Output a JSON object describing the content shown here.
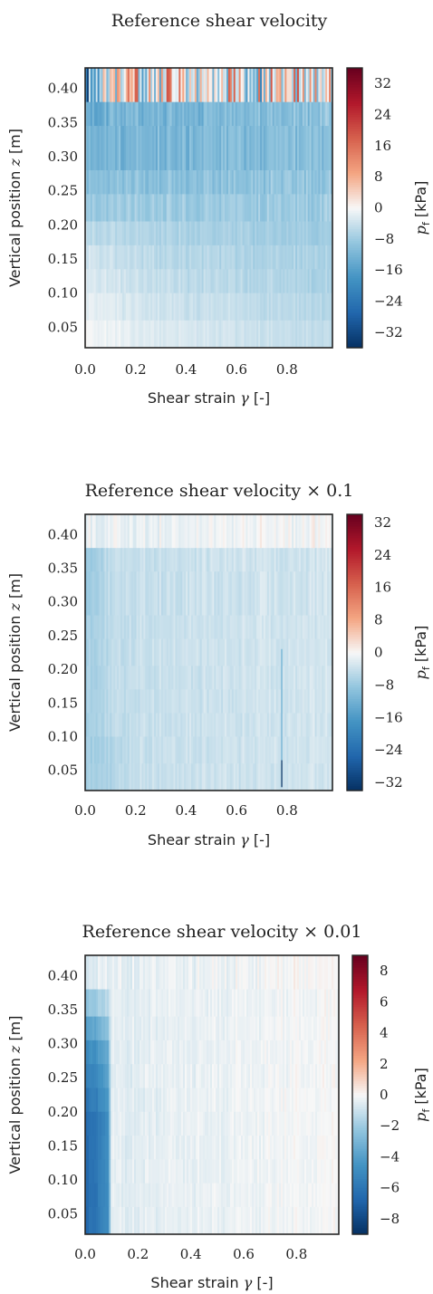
{
  "chart_data": [
    {
      "type": "heatmap",
      "title": "Reference shear velocity",
      "xlabel_text": "Shear strain",
      "xlabel_symbol": "γ",
      "xlabel_unit": "[-]",
      "ylabel_text": "Vertical position",
      "ylabel_symbol": "z",
      "ylabel_unit": "[m]",
      "colorbar_label_symbol": "p",
      "colorbar_label_subscript": "f",
      "colorbar_label_unit": "[kPa]",
      "xlim": [
        0.0,
        0.98
      ],
      "ylim": [
        0.02,
        0.43
      ],
      "xticks": [
        "0.0",
        "0.2",
        "0.4",
        "0.6",
        "0.8"
      ],
      "yticks": [
        "0.05",
        "0.10",
        "0.15",
        "0.20",
        "0.25",
        "0.30",
        "0.35",
        "0.40"
      ],
      "clim": [
        -36,
        36
      ],
      "colorbar_ticks": [
        "−32",
        "−24",
        "−16",
        "−8",
        "0",
        "8",
        "16",
        "24",
        "32"
      ],
      "colormap": "RdBu_r",
      "grid": false,
      "layers": [
        {
          "z": [
            0.38,
            0.43
          ],
          "profile": [
            [
              0.0,
              -36
            ],
            [
              0.02,
              -14
            ],
            [
              0.05,
              -4
            ],
            [
              0.2,
              0
            ],
            [
              0.98,
              0
            ]
          ],
          "noise": 18,
          "stripe": 0.06
        },
        {
          "z": [
            0.345,
            0.38
          ],
          "profile": [
            [
              0.0,
              -14
            ],
            [
              0.1,
              -12
            ],
            [
              0.98,
              -10
            ]
          ],
          "noise": 3,
          "stripe": 0.05
        },
        {
          "z": [
            0.28,
            0.345
          ],
          "profile": [
            [
              0.0,
              -12
            ],
            [
              0.98,
              -10
            ]
          ],
          "noise": 3,
          "stripe": 0.05
        },
        {
          "z": [
            0.245,
            0.28
          ],
          "profile": [
            [
              0.0,
              -10
            ],
            [
              0.98,
              -9
            ]
          ],
          "noise": 2.5,
          "stripe": 0.04
        },
        {
          "z": [
            0.205,
            0.245
          ],
          "profile": [
            [
              0.0,
              -8
            ],
            [
              0.98,
              -8
            ]
          ],
          "noise": 2,
          "stripe": 0.04
        },
        {
          "z": [
            0.17,
            0.205
          ],
          "profile": [
            [
              0.0,
              -5
            ],
            [
              0.2,
              -6
            ],
            [
              0.98,
              -8
            ]
          ],
          "noise": 1.5,
          "stripe": 0.03
        },
        {
          "z": [
            0.135,
            0.17
          ],
          "profile": [
            [
              0.0,
              -3
            ],
            [
              0.2,
              -5
            ],
            [
              0.98,
              -7
            ]
          ],
          "noise": 1.5,
          "stripe": 0.03
        },
        {
          "z": [
            0.1,
            0.135
          ],
          "profile": [
            [
              0.0,
              -2
            ],
            [
              0.2,
              -4
            ],
            [
              0.98,
              -7
            ]
          ],
          "noise": 1.5,
          "stripe": 0.03
        },
        {
          "z": [
            0.06,
            0.1
          ],
          "profile": [
            [
              0.0,
              -1
            ],
            [
              0.2,
              -3
            ],
            [
              0.98,
              -6
            ]
          ],
          "noise": 1.2,
          "stripe": 0.03
        },
        {
          "z": [
            0.02,
            0.06
          ],
          "profile": [
            [
              0.0,
              0
            ],
            [
              0.2,
              -2
            ],
            [
              0.98,
              -5
            ]
          ],
          "noise": 1,
          "stripe": 0.03
        }
      ],
      "features": []
    },
    {
      "type": "heatmap",
      "title": "Reference shear velocity × 0.1",
      "xlabel_text": "Shear strain",
      "xlabel_symbol": "γ",
      "xlabel_unit": "[-]",
      "ylabel_text": "Vertical position",
      "ylabel_symbol": "z",
      "ylabel_unit": "[m]",
      "colorbar_label_symbol": "p",
      "colorbar_label_subscript": "f",
      "colorbar_label_unit": "[kPa]",
      "xlim": [
        0.0,
        0.98
      ],
      "ylim": [
        0.02,
        0.43
      ],
      "xticks": [
        "0.0",
        "0.2",
        "0.4",
        "0.6",
        "0.8"
      ],
      "yticks": [
        "0.05",
        "0.10",
        "0.15",
        "0.20",
        "0.25",
        "0.30",
        "0.35",
        "0.40"
      ],
      "clim": [
        -34,
        34
      ],
      "colorbar_ticks": [
        "−32",
        "−24",
        "−16",
        "−8",
        "0",
        "8",
        "16",
        "24",
        "32"
      ],
      "colormap": "RdBu_r",
      "grid": false,
      "layers": [
        {
          "z": [
            0.38,
            0.43
          ],
          "profile": [
            [
              0.0,
              -1
            ],
            [
              0.98,
              0
            ]
          ],
          "noise": 2,
          "stripe": 0.05
        },
        {
          "z": [
            0.345,
            0.38
          ],
          "profile": [
            [
              0.0,
              -8
            ],
            [
              0.05,
              -6
            ],
            [
              0.15,
              -4
            ],
            [
              0.98,
              -3
            ]
          ],
          "noise": 1.5,
          "stripe": 0.03
        },
        {
          "z": [
            0.28,
            0.345
          ],
          "profile": [
            [
              0.0,
              -8
            ],
            [
              0.05,
              -6
            ],
            [
              0.15,
              -4
            ],
            [
              0.98,
              -3
            ]
          ],
          "noise": 1.5,
          "stripe": 0.03
        },
        {
          "z": [
            0.245,
            0.28
          ],
          "profile": [
            [
              0.0,
              -7
            ],
            [
              0.1,
              -5
            ],
            [
              0.2,
              -4
            ],
            [
              0.98,
              -3
            ]
          ],
          "noise": 1.2,
          "stripe": 0.03
        },
        {
          "z": [
            0.205,
            0.245
          ],
          "profile": [
            [
              0.0,
              -7
            ],
            [
              0.1,
              -5
            ],
            [
              0.2,
              -4
            ],
            [
              0.98,
              -3
            ]
          ],
          "noise": 1.2,
          "stripe": 0.03
        },
        {
          "z": [
            0.17,
            0.205
          ],
          "profile": [
            [
              0.0,
              -7
            ],
            [
              0.1,
              -5
            ],
            [
              0.2,
              -4
            ],
            [
              0.98,
              -3
            ]
          ],
          "noise": 1.2,
          "stripe": 0.03
        },
        {
          "z": [
            0.135,
            0.17
          ],
          "profile": [
            [
              0.0,
              -7
            ],
            [
              0.1,
              -5
            ],
            [
              0.2,
              -4
            ],
            [
              0.98,
              -3
            ]
          ],
          "noise": 1.2,
          "stripe": 0.03
        },
        {
          "z": [
            0.1,
            0.135
          ],
          "profile": [
            [
              0.0,
              -7
            ],
            [
              0.1,
              -5
            ],
            [
              0.2,
              -4
            ],
            [
              0.98,
              -3
            ]
          ],
          "noise": 1.2,
          "stripe": 0.03
        },
        {
          "z": [
            0.06,
            0.1
          ],
          "profile": [
            [
              0.0,
              -7
            ],
            [
              0.1,
              -6
            ],
            [
              0.2,
              -4
            ],
            [
              0.98,
              -3
            ]
          ],
          "noise": 1.2,
          "stripe": 0.03
        },
        {
          "z": [
            0.02,
            0.06
          ],
          "profile": [
            [
              0.0,
              -7
            ],
            [
              0.1,
              -6
            ],
            [
              0.2,
              -4
            ],
            [
              0.98,
              -3
            ]
          ],
          "noise": 1.2,
          "stripe": 0.03
        }
      ],
      "features": [
        {
          "x": [
            0.777,
            0.781
          ],
          "z": [
            0.025,
            0.065
          ],
          "value": -34
        },
        {
          "x": [
            0.776,
            0.782
          ],
          "z": [
            0.065,
            0.23
          ],
          "value": -10
        }
      ]
    },
    {
      "type": "heatmap",
      "title": "Reference shear velocity × 0.01",
      "xlabel_text": "Shear strain",
      "xlabel_symbol": "γ",
      "xlabel_unit": "[-]",
      "ylabel_text": "Vertical position",
      "ylabel_symbol": "z",
      "ylabel_unit": "[m]",
      "colorbar_label_symbol": "p",
      "colorbar_label_subscript": "f",
      "colorbar_label_unit": "[kPa]",
      "xlim": [
        0.0,
        0.96
      ],
      "ylim": [
        0.02,
        0.43
      ],
      "xticks": [
        "0.0",
        "0.2",
        "0.4",
        "0.6",
        "0.8"
      ],
      "yticks": [
        "0.05",
        "0.10",
        "0.15",
        "0.20",
        "0.25",
        "0.30",
        "0.35",
        "0.40"
      ],
      "clim": [
        -9,
        9
      ],
      "colorbar_ticks": [
        "−8",
        "−6",
        "−4",
        "−2",
        "0",
        "2",
        "4",
        "6",
        "8"
      ],
      "colormap": "RdBu_r",
      "grid": false,
      "layers": [
        {
          "z": [
            0.38,
            0.43
          ],
          "profile": [
            [
              0.0,
              -0.5
            ],
            [
              0.98,
              0.1
            ]
          ],
          "noise": 0.4,
          "stripe": 0.05
        },
        {
          "z": [
            0.34,
            0.38
          ],
          "profile": [
            [
              0.0,
              -2.5
            ],
            [
              0.04,
              -2.0
            ],
            [
              0.085,
              -1.5
            ],
            [
              0.1,
              -0.5
            ],
            [
              0.98,
              0
            ]
          ],
          "noise": 0.3,
          "stripe": 0.04
        },
        {
          "z": [
            0.305,
            0.34
          ],
          "profile": [
            [
              0.0,
              -4.0
            ],
            [
              0.04,
              -3.5
            ],
            [
              0.085,
              -2.5
            ],
            [
              0.1,
              -0.5
            ],
            [
              0.98,
              0
            ]
          ],
          "noise": 0.3,
          "stripe": 0.04
        },
        {
          "z": [
            0.27,
            0.305
          ],
          "profile": [
            [
              0.0,
              -5.0
            ],
            [
              0.04,
              -4.5
            ],
            [
              0.085,
              -3.5
            ],
            [
              0.1,
              -0.5
            ],
            [
              0.98,
              0
            ]
          ],
          "noise": 0.3,
          "stripe": 0.04
        },
        {
          "z": [
            0.235,
            0.27
          ],
          "profile": [
            [
              0.0,
              -5.5
            ],
            [
              0.04,
              -5.0
            ],
            [
              0.085,
              -4.0
            ],
            [
              0.1,
              -0.5
            ],
            [
              0.98,
              0
            ]
          ],
          "noise": 0.3,
          "stripe": 0.04
        },
        {
          "z": [
            0.2,
            0.235
          ],
          "profile": [
            [
              0.0,
              -6.0
            ],
            [
              0.04,
              -5.5
            ],
            [
              0.085,
              -4.5
            ],
            [
              0.1,
              -0.5
            ],
            [
              0.98,
              0
            ]
          ],
          "noise": 0.3,
          "stripe": 0.04
        },
        {
          "z": [
            0.165,
            0.2
          ],
          "profile": [
            [
              0.0,
              -6.5
            ],
            [
              0.04,
              -6.0
            ],
            [
              0.085,
              -5.0
            ],
            [
              0.1,
              -0.5
            ],
            [
              0.98,
              0
            ]
          ],
          "noise": 0.3,
          "stripe": 0.04
        },
        {
          "z": [
            0.13,
            0.165
          ],
          "profile": [
            [
              0.0,
              -6.5
            ],
            [
              0.04,
              -6.0
            ],
            [
              0.085,
              -5.0
            ],
            [
              0.1,
              -0.5
            ],
            [
              0.98,
              0
            ]
          ],
          "noise": 0.3,
          "stripe": 0.04
        },
        {
          "z": [
            0.095,
            0.13
          ],
          "profile": [
            [
              0.0,
              -6.5
            ],
            [
              0.04,
              -6.0
            ],
            [
              0.085,
              -5.0
            ],
            [
              0.1,
              -0.5
            ],
            [
              0.98,
              0
            ]
          ],
          "noise": 0.3,
          "stripe": 0.04
        },
        {
          "z": [
            0.06,
            0.095
          ],
          "profile": [
            [
              0.0,
              -6.5
            ],
            [
              0.04,
              -6.0
            ],
            [
              0.085,
              -5.0
            ],
            [
              0.1,
              -0.5
            ],
            [
              0.98,
              0
            ]
          ],
          "noise": 0.3,
          "stripe": 0.04
        },
        {
          "z": [
            0.02,
            0.06
          ],
          "profile": [
            [
              0.0,
              -6.5
            ],
            [
              0.04,
              -6.0
            ],
            [
              0.085,
              -5.0
            ],
            [
              0.1,
              -0.5
            ],
            [
              0.98,
              0
            ]
          ],
          "noise": 0.3,
          "stripe": 0.04
        }
      ],
      "features": []
    }
  ]
}
